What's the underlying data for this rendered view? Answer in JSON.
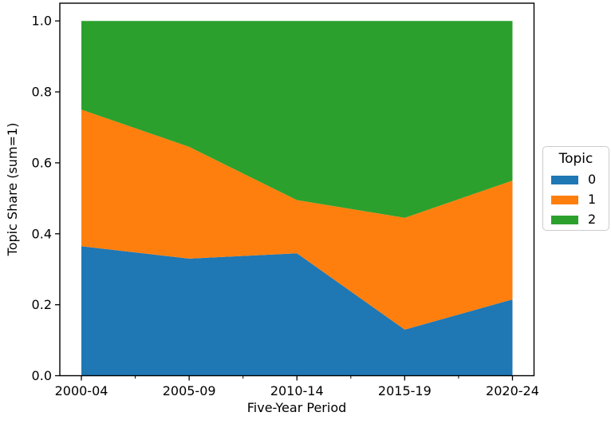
{
  "figure": {
    "kind": "stacked-area-plot",
    "background": "#ffffff",
    "spine_color": "#000000"
  },
  "chart_data": {
    "type": "area",
    "stacked": true,
    "normalized": true,
    "title": "",
    "xlabel": "Five-Year Period",
    "ylabel": "Topic Share (sum=1)",
    "categories": [
      "2000-04",
      "2005-09",
      "2010-14",
      "2015-19",
      "2020-24"
    ],
    "series": [
      {
        "name": "0",
        "color": "#1f77b4",
        "values": [
          0.365,
          0.33,
          0.345,
          0.13,
          0.215
        ]
      },
      {
        "name": "1",
        "color": "#ff7f0e",
        "values": [
          0.385,
          0.315,
          0.15,
          0.315,
          0.335
        ]
      },
      {
        "name": "2",
        "color": "#2ca02c",
        "values": [
          0.25,
          0.355,
          0.505,
          0.555,
          0.45
        ]
      }
    ],
    "ylim": [
      0.0,
      1.05
    ],
    "yticks": [
      "0.0",
      "0.2",
      "0.4",
      "0.6",
      "0.8",
      "1.0"
    ],
    "x_margin_fraction": 0.05,
    "grid": false,
    "legend": {
      "title": "Topic",
      "position": "center-right-outside",
      "entries": [
        {
          "label": "0",
          "color": "#1f77b4"
        },
        {
          "label": "1",
          "color": "#ff7f0e"
        },
        {
          "label": "2",
          "color": "#2ca02c"
        }
      ]
    }
  }
}
